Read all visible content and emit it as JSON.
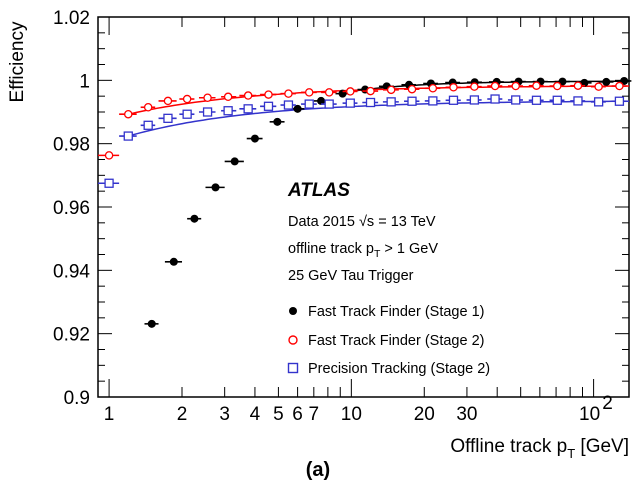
{
  "chart_data": {
    "type": "scatter",
    "title": "",
    "panel_label": "(a)",
    "xlabel": "Offline track p",
    "xlabel_sub": "T",
    "xlabel_unit": " [GeV]",
    "ylabel": "Efficiency",
    "x_scale": "log",
    "xlim": [
      0.9,
      140
    ],
    "ylim": [
      0.9,
      1.02
    ],
    "x_tick_labels": [
      "1",
      "2",
      "3",
      "4",
      "5",
      "6",
      "7",
      "10",
      "20",
      "30"
    ],
    "x_ticks": [
      1,
      2,
      3,
      4,
      5,
      6,
      7,
      10,
      20,
      30
    ],
    "x_tick_100_base": "10",
    "x_tick_100_exp": "2",
    "y_tick_labels": [
      "0.9",
      "0.92",
      "0.94",
      "0.96",
      "0.98",
      "1",
      "1.02"
    ],
    "y_ticks": [
      0.9,
      0.92,
      0.94,
      0.96,
      0.98,
      1.0,
      1.02
    ],
    "grid": false,
    "legend_placement": "inside-lower-right",
    "annotations": {
      "experiment": "ATLAS",
      "line1_pre": "Data 2015   ",
      "line1_sqrt": "√s",
      "line1_post": " = 13 TeV",
      "line2_pre": "offline track p",
      "line2_sub": "T",
      "line2_post": " > 1 GeV",
      "line3": "25 GeV Tau Trigger"
    },
    "series": [
      {
        "name": "Fast Track Finder (Stage 1)",
        "marker": "filled-circle",
        "color": "#000000",
        "points": [
          {
            "x": 1.5,
            "y": 0.9231,
            "xerr": [
              1.4,
              1.6
            ]
          },
          {
            "x": 1.85,
            "y": 0.9427,
            "xerr": [
              1.7,
              2.0
            ]
          },
          {
            "x": 2.25,
            "y": 0.9563,
            "xerr": [
              2.1,
              2.4
            ]
          },
          {
            "x": 2.75,
            "y": 0.9662,
            "xerr": [
              2.5,
              3.0
            ]
          },
          {
            "x": 3.3,
            "y": 0.9744,
            "xerr": [
              3.0,
              3.6
            ]
          },
          {
            "x": 4.0,
            "y": 0.9816,
            "xerr": [
              3.7,
              4.3
            ]
          },
          {
            "x": 4.95,
            "y": 0.9869,
            "xerr": [
              4.6,
              5.3
            ]
          },
          {
            "x": 6.0,
            "y": 0.991,
            "xerr": [
              5.6,
              6.4
            ]
          },
          {
            "x": 7.5,
            "y": 0.9935,
            "xerr": [
              7.0,
              8.0
            ]
          },
          {
            "x": 9.2,
            "y": 0.9958,
            "xerr": [
              8.6,
              9.8
            ]
          },
          {
            "x": 11.4,
            "y": 0.9971,
            "xerr": [
              10.6,
              12.2
            ]
          },
          {
            "x": 14.0,
            "y": 0.9981,
            "xerr": [
              13.0,
              15.0
            ]
          },
          {
            "x": 17.3,
            "y": 0.9986,
            "xerr": [
              16.1,
              18.5
            ]
          },
          {
            "x": 21.3,
            "y": 0.999,
            "xerr": [
              19.8,
              22.8
            ]
          },
          {
            "x": 26.2,
            "y": 0.9993,
            "xerr": [
              24.4,
              28.1
            ]
          },
          {
            "x": 32.3,
            "y": 0.9994,
            "xerr": [
              30.0,
              34.6
            ]
          },
          {
            "x": 39.8,
            "y": 0.9995,
            "xerr": [
              37.0,
              42.6
            ]
          },
          {
            "x": 49.0,
            "y": 0.9996,
            "xerr": [
              45.5,
              52.5
            ]
          },
          {
            "x": 60.4,
            "y": 0.9996,
            "xerr": [
              56.1,
              64.7
            ]
          },
          {
            "x": 74.4,
            "y": 0.9996,
            "xerr": [
              69.1,
              79.7
            ]
          },
          {
            "x": 91.6,
            "y": 0.9992,
            "xerr": [
              85.1,
              98.1
            ]
          },
          {
            "x": 112.8,
            "y": 0.9995,
            "xerr": [
              104.8,
              120.8
            ]
          },
          {
            "x": 133.7,
            "y": 0.9998,
            "xerr": [
              124.2,
              143.2
            ]
          }
        ]
      },
      {
        "name": "Fast Track Finder (Stage 2)",
        "marker": "open-circle",
        "color": "#ff0000",
        "points": [
          {
            "x": 1.0,
            "y": 0.9763,
            "xerr": [
              0.9,
              1.1
            ]
          },
          {
            "x": 1.2,
            "y": 0.9893,
            "xerr": [
              1.1,
              1.3
            ]
          },
          {
            "x": 1.45,
            "y": 0.9915,
            "xerr": [
              1.35,
              1.55
            ]
          },
          {
            "x": 1.75,
            "y": 0.9935,
            "xerr": [
              1.6,
              1.9
            ]
          },
          {
            "x": 2.1,
            "y": 0.9941,
            "xerr": [
              1.95,
              2.25
            ]
          },
          {
            "x": 2.55,
            "y": 0.9945,
            "xerr": [
              2.35,
              2.75
            ]
          },
          {
            "x": 3.1,
            "y": 0.9948,
            "xerr": [
              2.9,
              3.35
            ]
          },
          {
            "x": 3.75,
            "y": 0.9952,
            "xerr": [
              3.45,
              4.05
            ]
          },
          {
            "x": 4.55,
            "y": 0.9955,
            "xerr": [
              4.2,
              4.9
            ]
          },
          {
            "x": 5.5,
            "y": 0.9958,
            "xerr": [
              5.1,
              5.9
            ]
          },
          {
            "x": 6.7,
            "y": 0.9962,
            "xerr": [
              6.2,
              7.2
            ]
          },
          {
            "x": 8.1,
            "y": 0.9962,
            "xerr": [
              7.5,
              8.7
            ]
          },
          {
            "x": 9.9,
            "y": 0.9965,
            "xerr": [
              9.2,
              10.6
            ]
          },
          {
            "x": 12.0,
            "y": 0.9966,
            "xerr": [
              11.1,
              12.9
            ]
          },
          {
            "x": 14.6,
            "y": 0.997,
            "xerr": [
              13.5,
              15.7
            ]
          },
          {
            "x": 17.8,
            "y": 0.9972,
            "xerr": [
              16.5,
              19.1
            ]
          },
          {
            "x": 21.7,
            "y": 0.9975,
            "xerr": [
              20.1,
              23.3
            ]
          },
          {
            "x": 26.4,
            "y": 0.9978,
            "xerr": [
              24.5,
              28.3
            ]
          },
          {
            "x": 32.2,
            "y": 0.998,
            "xerr": [
              29.9,
              34.5
            ]
          },
          {
            "x": 39.2,
            "y": 0.9982,
            "xerr": [
              36.4,
              42.0
            ]
          },
          {
            "x": 47.7,
            "y": 0.9982,
            "xerr": [
              44.3,
              51.1
            ]
          },
          {
            "x": 58.1,
            "y": 0.9983,
            "xerr": [
              54.0,
              62.2
            ]
          },
          {
            "x": 70.8,
            "y": 0.9982,
            "xerr": [
              65.8,
              75.8
            ]
          },
          {
            "x": 86.2,
            "y": 0.9983,
            "xerr": [
              80.1,
              92.3
            ]
          },
          {
            "x": 104.9,
            "y": 0.998,
            "xerr": [
              97.5,
              112.3
            ]
          },
          {
            "x": 127.8,
            "y": 0.9982,
            "xerr": [
              118.7,
              136.9
            ]
          }
        ]
      },
      {
        "name": "Precision Tracking (Stage 2)",
        "marker": "open-square",
        "color": "#3333cc",
        "points": [
          {
            "x": 1.0,
            "y": 0.9675,
            "xerr": [
              0.9,
              1.1
            ]
          },
          {
            "x": 1.2,
            "y": 0.9824,
            "xerr": [
              1.1,
              1.3
            ]
          },
          {
            "x": 1.45,
            "y": 0.9858,
            "xerr": [
              1.35,
              1.55
            ]
          },
          {
            "x": 1.75,
            "y": 0.988,
            "xerr": [
              1.6,
              1.9
            ]
          },
          {
            "x": 2.1,
            "y": 0.9893,
            "xerr": [
              1.95,
              2.25
            ]
          },
          {
            "x": 2.55,
            "y": 0.99,
            "xerr": [
              2.35,
              2.75
            ]
          },
          {
            "x": 3.1,
            "y": 0.9904,
            "xerr": [
              2.9,
              3.35
            ]
          },
          {
            "x": 3.75,
            "y": 0.991,
            "xerr": [
              3.45,
              4.05
            ]
          },
          {
            "x": 4.55,
            "y": 0.9918,
            "xerr": [
              4.2,
              4.9
            ]
          },
          {
            "x": 5.5,
            "y": 0.9922,
            "xerr": [
              5.1,
              5.9
            ]
          },
          {
            "x": 6.7,
            "y": 0.9925,
            "xerr": [
              6.2,
              7.2
            ]
          },
          {
            "x": 8.1,
            "y": 0.9925,
            "xerr": [
              7.5,
              8.7
            ]
          },
          {
            "x": 9.9,
            "y": 0.9928,
            "xerr": [
              9.2,
              10.6
            ]
          },
          {
            "x": 12.0,
            "y": 0.993,
            "xerr": [
              11.1,
              12.9
            ]
          },
          {
            "x": 14.6,
            "y": 0.9932,
            "xerr": [
              13.5,
              15.7
            ]
          },
          {
            "x": 17.8,
            "y": 0.9934,
            "xerr": [
              16.5,
              19.1
            ]
          },
          {
            "x": 21.7,
            "y": 0.9935,
            "xerr": [
              20.1,
              23.3
            ]
          },
          {
            "x": 26.4,
            "y": 0.9937,
            "xerr": [
              24.5,
              28.3
            ]
          },
          {
            "x": 32.2,
            "y": 0.9938,
            "xerr": [
              29.9,
              34.5
            ]
          },
          {
            "x": 39.2,
            "y": 0.9941,
            "xerr": [
              36.4,
              42.0
            ]
          },
          {
            "x": 47.7,
            "y": 0.9938,
            "xerr": [
              44.3,
              51.1
            ]
          },
          {
            "x": 58.1,
            "y": 0.9937,
            "xerr": [
              54.0,
              62.2
            ]
          },
          {
            "x": 70.8,
            "y": 0.9937,
            "xerr": [
              65.8,
              75.8
            ]
          },
          {
            "x": 86.2,
            "y": 0.9935,
            "xerr": [
              80.1,
              92.3
            ]
          },
          {
            "x": 104.9,
            "y": 0.9932,
            "xerr": [
              97.5,
              112.3
            ]
          },
          {
            "x": 127.8,
            "y": 0.9934,
            "xerr": [
              118.7,
              136.9
            ]
          }
        ]
      }
    ],
    "fits": [
      {
        "series": "Fast Track Finder (Stage 1)",
        "color": "#000000",
        "x_from": 10,
        "x_to": 140,
        "y_from": 0.9965,
        "y_to": 0.9997
      },
      {
        "series": "Fast Track Finder (Stage 2)",
        "color": "#ff0000",
        "x_from": 1.2,
        "x_to": 140,
        "y_from": 0.9893,
        "y_to": 0.9982
      },
      {
        "series": "Precision Tracking (Stage 2)",
        "color": "#3333cc",
        "x_from": 1.2,
        "x_to": 140,
        "y_from": 0.9824,
        "y_to": 0.9934
      }
    ]
  }
}
